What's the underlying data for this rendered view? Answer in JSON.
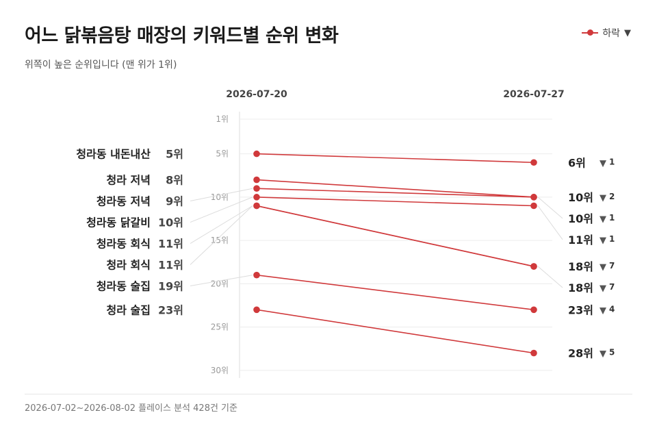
{
  "title": "어느 닭볶음탕 매장의 키워드별 순위 변화",
  "subtitle": "위쪽이 높은 순위입니다 (맨 위가 1위)",
  "footer": "2026-07-02~2026-08-02 플레이스 분석 428건 기준",
  "legend": {
    "label": "하락",
    "arrow": "▼"
  },
  "colors": {
    "line": "#d0393b",
    "arrow": "#555555",
    "connector": "#dcdcdc",
    "grid": "#ececec"
  },
  "chart_data": {
    "type": "line",
    "subtype": "slope",
    "x": [
      "2026-07-20",
      "2026-07-27"
    ],
    "ylim": [
      1,
      30
    ],
    "y_inverted": true,
    "yticks": [
      1,
      5,
      10,
      15,
      20,
      25,
      30
    ],
    "ytick_suffix": "위",
    "rank_suffix": "위",
    "series": [
      {
        "name": "청라동 내돈내산",
        "start": 5,
        "end": 6,
        "change": 1
      },
      {
        "name": "청라 저녁",
        "start": 8,
        "end": 10,
        "change": 2
      },
      {
        "name": "청라동 저녁",
        "start": 9,
        "end": 10,
        "change": 1
      },
      {
        "name": "청라동 닭갈비",
        "start": 10,
        "end": 11,
        "change": 1
      },
      {
        "name": "청라동 회식",
        "start": 11,
        "end": 18,
        "change": 7
      },
      {
        "name": "청라 회식",
        "start": 11,
        "end": 18,
        "change": 7
      },
      {
        "name": "청라동 술집",
        "start": 19,
        "end": 23,
        "change": 4
      },
      {
        "name": "청라 술집",
        "start": 23,
        "end": 28,
        "change": 5
      }
    ],
    "legend_position": "top-right",
    "grid": true
  }
}
